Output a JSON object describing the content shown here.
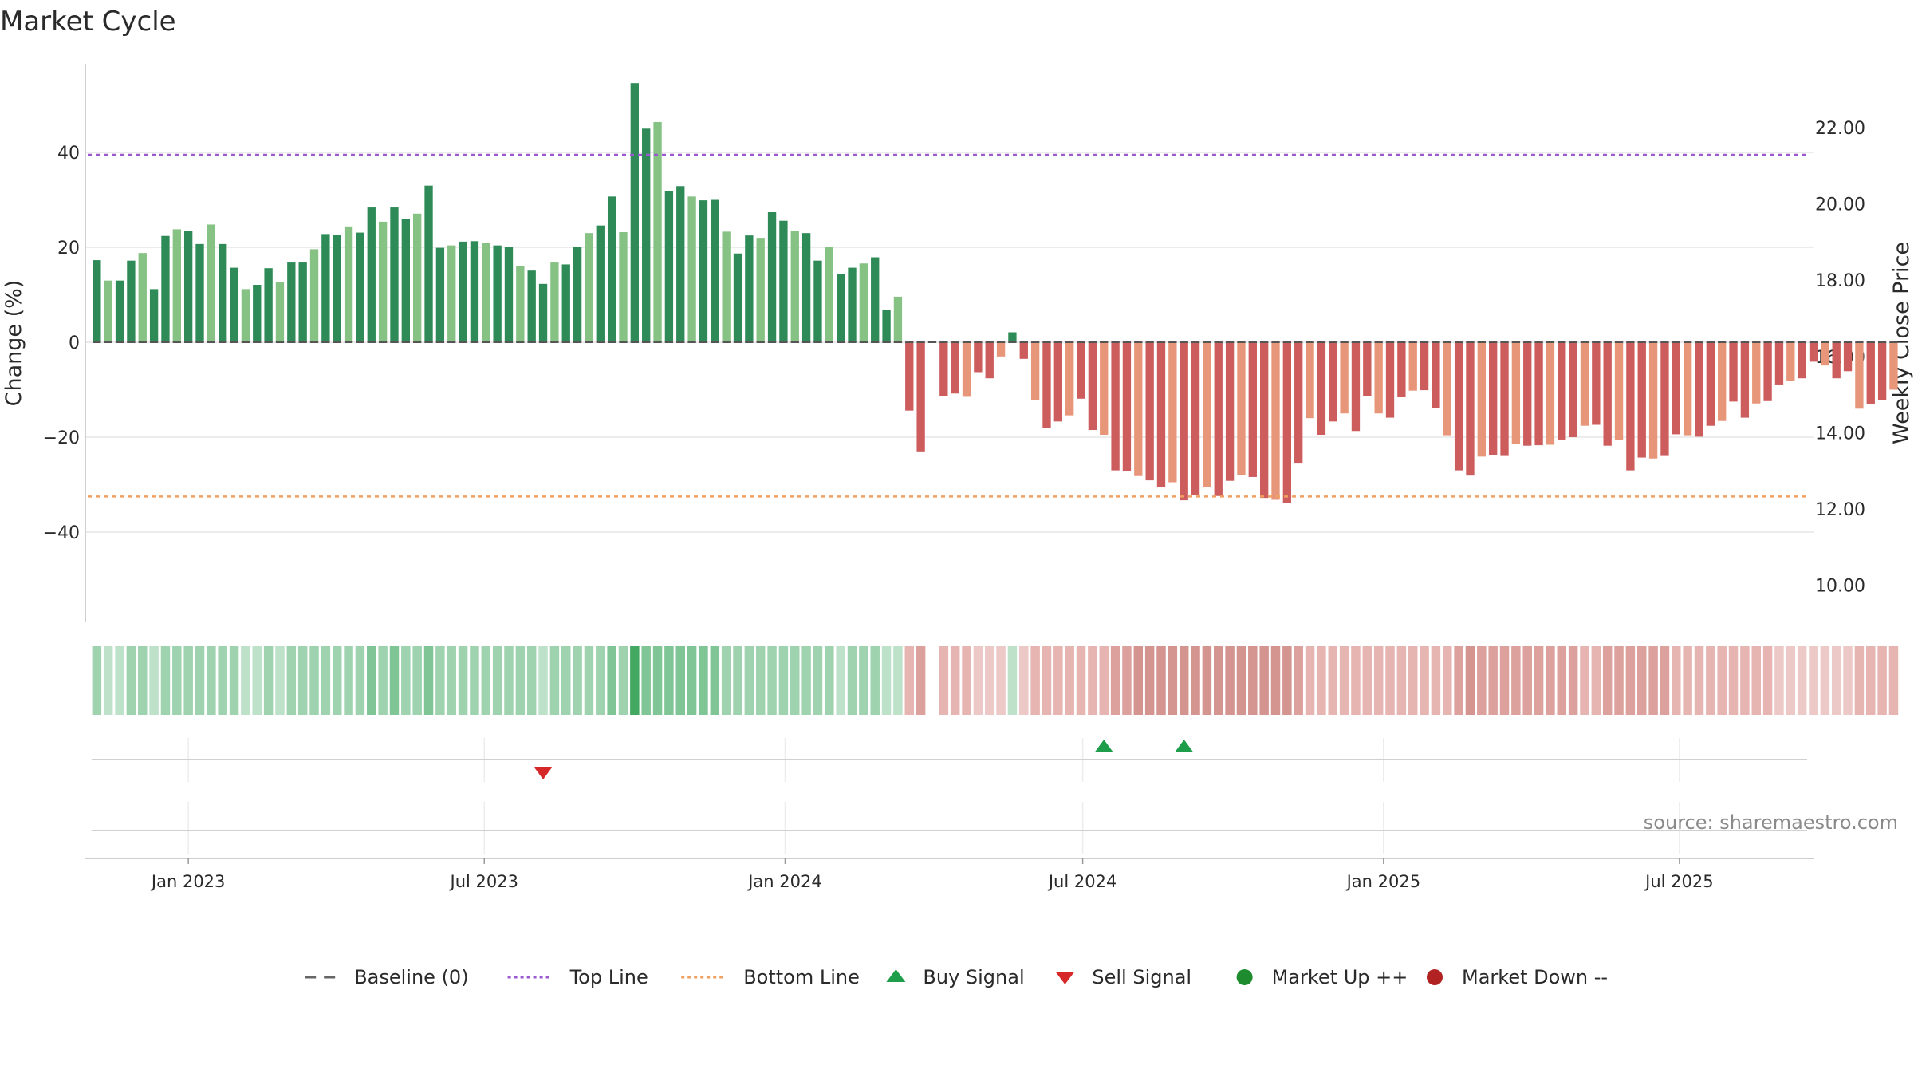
{
  "chart_data": {
    "type": "bar",
    "title": "Market Cycle",
    "y_left_label": "Change (%)",
    "y_right_label": "Weekly Close Price",
    "y_left_ticks": [
      "40",
      "20",
      "0",
      "−20",
      "−40"
    ],
    "y_left_tick_values": [
      40,
      20,
      0,
      -20,
      -40
    ],
    "y_right_ticks": [
      "22.00",
      "20.00",
      "18.00",
      "16.00",
      "14.00",
      "12.00",
      "10.00"
    ],
    "y_right_tick_values": [
      22,
      20,
      18,
      16,
      14,
      12,
      10
    ],
    "ylim_left": [
      -59,
      59
    ],
    "top_line": 39.5,
    "bottom_line": -32.5,
    "x_range": [
      "2022-10-30",
      "2025-09-21"
    ],
    "x_ticks": [
      {
        "date": "2023-01-01",
        "label": "Jan 2023"
      },
      {
        "date": "2023-07-01",
        "label": "Jul 2023"
      },
      {
        "date": "2024-01-01",
        "label": "Jan 2024"
      },
      {
        "date": "2024-07-01",
        "label": "Jul 2024"
      },
      {
        "date": "2025-01-01",
        "label": "Jan 2025"
      },
      {
        "date": "2025-07-01",
        "label": "Jul 2025"
      }
    ],
    "first_week": "2022-11-06",
    "values": [
      17.3,
      13.0,
      13.0,
      17.2,
      18.8,
      11.2,
      22.4,
      23.8,
      23.4,
      20.7,
      24.8,
      20.7,
      15.7,
      11.2,
      12.1,
      15.6,
      12.6,
      16.8,
      16.8,
      19.6,
      22.8,
      22.6,
      24.4,
      23.1,
      28.4,
      25.4,
      28.4,
      26.0,
      27.1,
      33.0,
      19.9,
      20.4,
      21.2,
      21.3,
      20.9,
      20.4,
      20.0,
      16.0,
      15.1,
      12.3,
      16.8,
      16.4,
      20.1,
      23.0,
      24.6,
      30.7,
      23.2,
      54.6,
      45.0,
      46.4,
      31.8,
      32.9,
      30.7,
      29.9,
      30.0,
      23.3,
      18.7,
      22.5,
      22.0,
      27.4,
      25.6,
      23.5,
      23.0,
      17.2,
      20.1,
      14.4,
      15.7,
      16.6,
      17.9,
      6.9,
      9.6,
      -14.4,
      -23.0,
      0.0,
      -11.3,
      -10.8,
      -11.5,
      -6.3,
      -7.6,
      -3.0,
      2.1,
      -3.5,
      -12.2,
      -18.0,
      -16.7,
      -15.4,
      -11.9,
      -18.5,
      -19.5,
      -27.0,
      -27.1,
      -28.2,
      -29.1,
      -30.6,
      -29.5,
      -33.3,
      -32.1,
      -30.6,
      -32.4,
      -29.2,
      -28.0,
      -28.4,
      -32.8,
      -33.2,
      -33.8,
      -25.4,
      -16.0,
      -19.5,
      -16.7,
      -15.0,
      -18.7,
      -11.4,
      -15.0,
      -15.9,
      -11.6,
      -10.2,
      -10.1,
      -13.8,
      -19.6,
      -27.0,
      -28.1,
      -24.1,
      -23.7,
      -23.8,
      -21.5,
      -21.8,
      -21.7,
      -21.6,
      -20.5,
      -20.0,
      -17.6,
      -17.4,
      -21.8,
      -20.6,
      -27.0,
      -24.3,
      -24.5,
      -23.8,
      -19.4,
      -19.6,
      -19.9,
      -17.6,
      -16.6,
      -12.5,
      -15.9,
      -12.9,
      -12.4,
      -8.9,
      -8.1,
      -7.6,
      -4.1,
      -4.9,
      -7.6,
      -6.1,
      -14.0,
      -13.0,
      -12.1,
      -10.0
    ],
    "heat_strip": {
      "colors": {
        "green_light": "#bde2c9",
        "green_mid": "#9fd3af",
        "green_strong": "#80c596",
        "green_peak": "#43a862",
        "red_light": "#ecc8c6",
        "red_mid": "#e6b4b1",
        "red_strong": "#dca19c",
        "red_deep": "#d49490"
      }
    },
    "signals": {
      "sell": [
        "2023-08-06"
      ],
      "buy": [
        "2024-07-14",
        "2024-09-01"
      ]
    },
    "legend": [
      {
        "label": "Baseline (0)",
        "kind": "dash",
        "color": "#666666"
      },
      {
        "label": "Top Line",
        "kind": "dot",
        "color": "#9b59d0"
      },
      {
        "label": "Bottom Line",
        "kind": "dot",
        "color": "#f0a162"
      },
      {
        "label": "Buy Signal",
        "kind": "up-triangle",
        "color": "#1e9e4a"
      },
      {
        "label": "Sell Signal",
        "kind": "down-triangle",
        "color": "#d62828"
      },
      {
        "label": "Market Up ++",
        "kind": "circle",
        "color": "#1e8c2e"
      },
      {
        "label": "Market Down --",
        "kind": "circle",
        "color": "#b22222"
      }
    ],
    "colors": {
      "pos_strong": "#2e8b57",
      "pos_light": "#86c283",
      "neg_strong": "#cd5c5c",
      "neg_light": "#e8967a",
      "grid": "#e6e6e6"
    },
    "source": "source: sharemaestro.com"
  }
}
